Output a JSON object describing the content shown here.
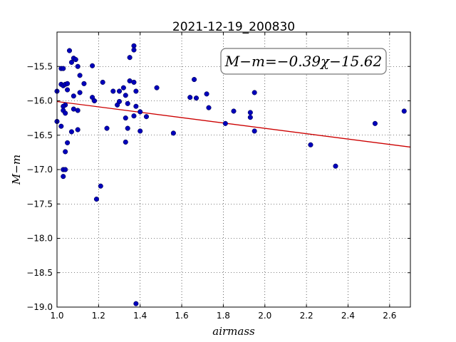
{
  "chart_data": {
    "type": "scatter",
    "title": "2021-12-19_200830",
    "xlabel": "airmass",
    "ylabel": "M−m",
    "xlim": [
      1.0,
      2.7
    ],
    "ylim": [
      -19.0,
      -15.0
    ],
    "x_ticks": [
      1.0,
      1.2,
      1.4,
      1.6,
      1.8,
      2.0,
      2.2,
      2.4,
      2.6
    ],
    "x_tick_labels": [
      "1.0",
      "1.2",
      "1.4",
      "1.6",
      "1.8",
      "2.0",
      "2.2",
      "2.4",
      "2.6"
    ],
    "y_ticks": [
      -15.5,
      -16.0,
      -16.5,
      -17.0,
      -17.5,
      -18.0,
      -18.5,
      -19.0
    ],
    "y_tick_labels": [
      "−15.5",
      "−16.0",
      "−16.5",
      "−17.0",
      "−17.5",
      "−18.0",
      "−18.5",
      "−19.0"
    ],
    "grid": true,
    "annotation": "M−m=−0.39χ−15.62",
    "fit": {
      "slope": -0.39,
      "intercept": -15.62,
      "color": "#cc0000"
    },
    "marker_color": "#0000bb",
    "points": [
      [
        1.0,
        -15.86
      ],
      [
        1.0,
        -16.3
      ],
      [
        1.02,
        -15.53
      ],
      [
        1.03,
        -15.53
      ],
      [
        1.02,
        -15.76
      ],
      [
        1.03,
        -15.78
      ],
      [
        1.04,
        -15.76
      ],
      [
        1.05,
        -15.75
      ],
      [
        1.05,
        -15.84
      ],
      [
        1.04,
        -16.06
      ],
      [
        1.03,
        -16.08
      ],
      [
        1.03,
        -16.14
      ],
      [
        1.04,
        -16.18
      ],
      [
        1.02,
        -16.37
      ],
      [
        1.06,
        -15.27
      ],
      [
        1.08,
        -15.38
      ],
      [
        1.09,
        -15.4
      ],
      [
        1.07,
        -15.44
      ],
      [
        1.1,
        -15.5
      ],
      [
        1.11,
        -15.63
      ],
      [
        1.08,
        -15.93
      ],
      [
        1.11,
        -15.88
      ],
      [
        1.13,
        -15.75
      ],
      [
        1.08,
        -16.12
      ],
      [
        1.1,
        -16.14
      ],
      [
        1.07,
        -16.45
      ],
      [
        1.1,
        -16.42
      ],
      [
        1.05,
        -16.61
      ],
      [
        1.04,
        -16.74
      ],
      [
        1.03,
        -17.0
      ],
      [
        1.04,
        -17.0
      ],
      [
        1.03,
        -17.1
      ],
      [
        1.17,
        -15.49
      ],
      [
        1.17,
        -15.95
      ],
      [
        1.18,
        -16.0
      ],
      [
        1.22,
        -15.73
      ],
      [
        1.24,
        -16.4
      ],
      [
        1.21,
        -17.24
      ],
      [
        1.19,
        -17.43
      ],
      [
        1.27,
        -15.86
      ],
      [
        1.3,
        -15.86
      ],
      [
        1.32,
        -15.81
      ],
      [
        1.33,
        -15.92
      ],
      [
        1.3,
        -16.01
      ],
      [
        1.29,
        -16.06
      ],
      [
        1.34,
        -16.04
      ],
      [
        1.33,
        -16.25
      ],
      [
        1.34,
        -16.4
      ],
      [
        1.33,
        -16.6
      ],
      [
        1.35,
        -15.37
      ],
      [
        1.37,
        -15.2
      ],
      [
        1.37,
        -15.26
      ],
      [
        1.35,
        -15.71
      ],
      [
        1.37,
        -15.73
      ],
      [
        1.38,
        -15.86
      ],
      [
        1.38,
        -16.08
      ],
      [
        1.4,
        -16.16
      ],
      [
        1.37,
        -16.22
      ],
      [
        1.43,
        -16.23
      ],
      [
        1.4,
        -16.44
      ],
      [
        1.48,
        -15.81
      ],
      [
        1.56,
        -16.47
      ],
      [
        1.38,
        -18.95
      ],
      [
        1.64,
        -15.95
      ],
      [
        1.66,
        -15.69
      ],
      [
        1.67,
        -15.96
      ],
      [
        1.72,
        -15.9
      ],
      [
        1.73,
        -16.1
      ],
      [
        1.81,
        -16.33
      ],
      [
        1.85,
        -16.15
      ],
      [
        1.93,
        -16.17
      ],
      [
        1.93,
        -16.24
      ],
      [
        1.95,
        -15.88
      ],
      [
        1.95,
        -16.44
      ],
      [
        2.22,
        -16.64
      ],
      [
        2.34,
        -16.95
      ],
      [
        2.53,
        -16.33
      ],
      [
        2.67,
        -16.15
      ]
    ]
  }
}
